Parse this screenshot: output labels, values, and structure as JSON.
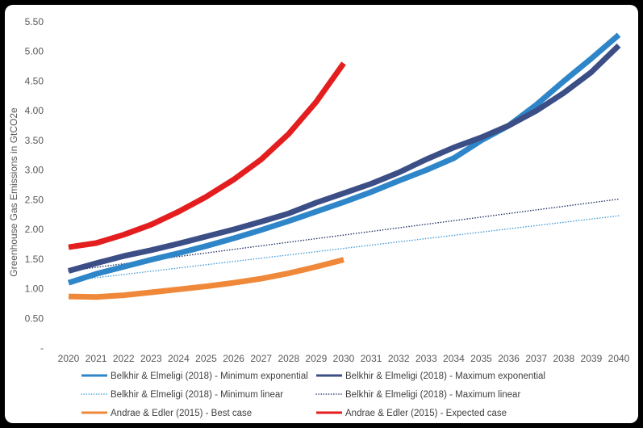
{
  "chart_data": {
    "type": "line",
    "ylabel": "Greenhouse Gas Emissions in GtCO2e",
    "xlabel": "",
    "ylim": [
      0,
      5.5
    ],
    "xlim": [
      2020,
      2040
    ],
    "y_ticks": [
      "-",
      "0.50",
      "1.00",
      "1.50",
      "2.00",
      "2.50",
      "3.00",
      "3.50",
      "4.00",
      "4.50",
      "5.00",
      "5.50"
    ],
    "x_ticks": [
      "2020",
      "2021",
      "2022",
      "2023",
      "2024",
      "2025",
      "2026",
      "2027",
      "2028",
      "2029",
      "2030",
      "2031",
      "2032",
      "2033",
      "2034",
      "2035",
      "2036",
      "2037",
      "2038",
      "2039",
      "2040"
    ],
    "grid": false,
    "legend_position": "bottom",
    "series": [
      {
        "name": "Belkhir & Elmeligi (2018) - Minimum exponential",
        "color": "#2E86C9",
        "style": "solid",
        "width": 7,
        "x": [
          2020,
          2021,
          2022,
          2023,
          2024,
          2025,
          2026,
          2027,
          2028,
          2029,
          2030,
          2031,
          2032,
          2033,
          2034,
          2035,
          2036,
          2037,
          2038,
          2039,
          2040
        ],
        "y": [
          1.1,
          1.25,
          1.37,
          1.49,
          1.6,
          1.72,
          1.85,
          1.99,
          2.14,
          2.3,
          2.46,
          2.63,
          2.82,
          3.0,
          3.2,
          3.5,
          3.75,
          4.1,
          4.5,
          4.88,
          5.28
        ]
      },
      {
        "name": "Belkhir & Elmeligi (2018) - Maximum exponential",
        "color": "#3B4E86",
        "style": "solid",
        "width": 7,
        "x": [
          2020,
          2021,
          2022,
          2023,
          2024,
          2025,
          2026,
          2027,
          2028,
          2029,
          2030,
          2031,
          2032,
          2033,
          2034,
          2035,
          2036,
          2037,
          2038,
          2039,
          2040
        ],
        "y": [
          1.3,
          1.43,
          1.55,
          1.65,
          1.76,
          1.88,
          2.0,
          2.13,
          2.27,
          2.45,
          2.61,
          2.77,
          2.96,
          3.18,
          3.38,
          3.55,
          3.75,
          4.0,
          4.3,
          4.65,
          5.1
        ]
      },
      {
        "name": "Belkhir & Elmeligi (2018) - Minimum linear",
        "color": "#4A9FD8",
        "style": "dotted",
        "width": 1.6,
        "x": [
          2020,
          2040
        ],
        "y": [
          1.13,
          2.23
        ]
      },
      {
        "name": "Belkhir & Elmeligi (2018) - Maximum linear",
        "color": "#2A3B6B",
        "style": "dotted",
        "width": 1.6,
        "x": [
          2020,
          2040
        ],
        "y": [
          1.3,
          2.51
        ]
      },
      {
        "name": "Andrae & Edler (2015) - Best case",
        "color": "#F0883A",
        "style": "solid",
        "width": 7,
        "x": [
          2020,
          2021,
          2022,
          2023,
          2024,
          2025,
          2026,
          2027,
          2028,
          2029,
          2030
        ],
        "y": [
          0.87,
          0.86,
          0.89,
          0.94,
          0.99,
          1.04,
          1.1,
          1.17,
          1.26,
          1.37,
          1.49
        ]
      },
      {
        "name": "Andrae & Edler (2015) - Expected case",
        "color": "#E41E1E",
        "style": "solid",
        "width": 7,
        "x": [
          2020,
          2021,
          2022,
          2023,
          2024,
          2025,
          2026,
          2027,
          2028,
          2029,
          2030
        ],
        "y": [
          1.7,
          1.77,
          1.91,
          2.08,
          2.3,
          2.55,
          2.84,
          3.18,
          3.61,
          4.15,
          4.8
        ]
      }
    ]
  }
}
